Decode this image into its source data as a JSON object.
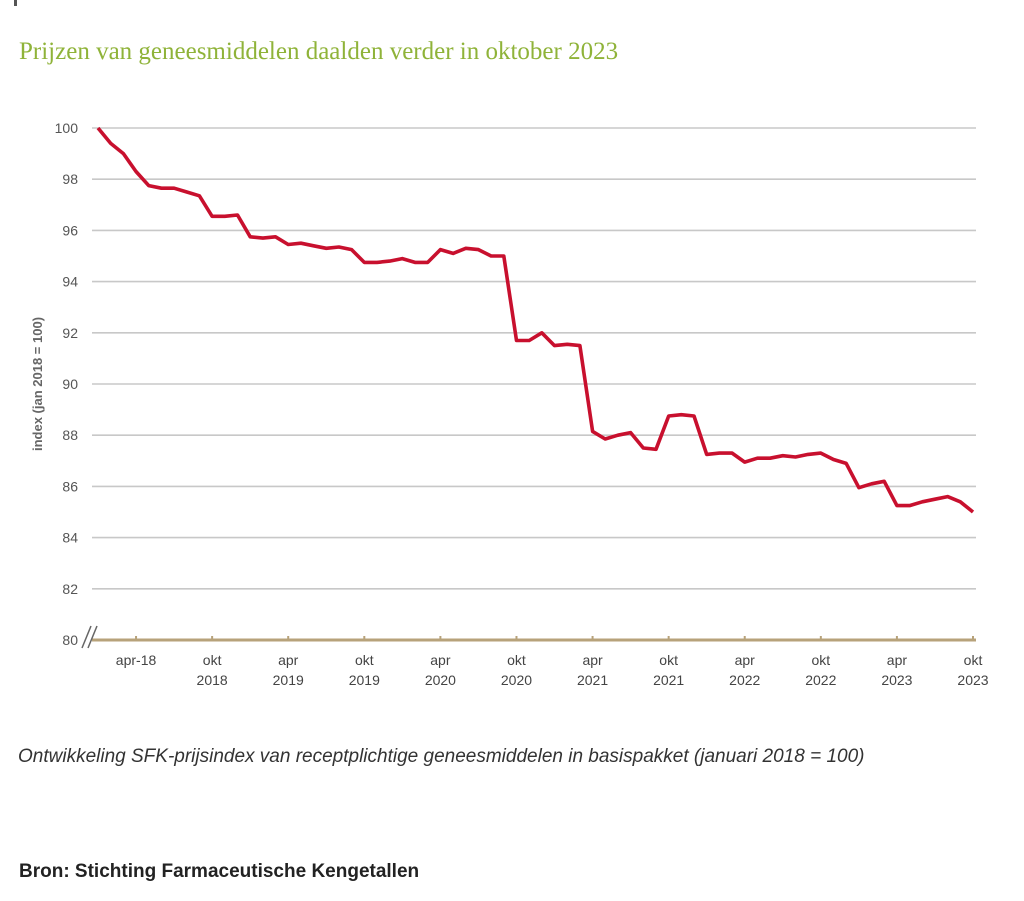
{
  "title": "Prijzen van geneesmiddelen daalden verder in oktober 2023",
  "caption": "Ontwikkeling SFK-prijsindex van receptplichtige geneesmiddelen in basispakket (januari 2018 = 100)",
  "source": "Bron: Stichting Farmaceutische Kengetallen",
  "colors": {
    "title": "#8fb339",
    "line": "#c8102e",
    "grid": "#c8c8c8",
    "axis": "#b7a27a",
    "tick_text": "#555555"
  },
  "chart_data": {
    "type": "line",
    "title": "",
    "xlabel": "",
    "ylabel": "index (jan 2018 = 100)",
    "ylim": [
      80,
      100
    ],
    "yticks": [
      100,
      98,
      96,
      94,
      92,
      90,
      88,
      86,
      84,
      82,
      80
    ],
    "grid": true,
    "axis_break": true,
    "x_ticks": [
      {
        "month": "2018-04",
        "line1": "apr-18",
        "line2": ""
      },
      {
        "month": "2018-10",
        "line1": "okt",
        "line2": "2018"
      },
      {
        "month": "2019-04",
        "line1": "apr",
        "line2": "2019"
      },
      {
        "month": "2019-10",
        "line1": "okt",
        "line2": "2019"
      },
      {
        "month": "2020-04",
        "line1": "apr",
        "line2": "2020"
      },
      {
        "month": "2020-10",
        "line1": "okt",
        "line2": "2020"
      },
      {
        "month": "2021-04",
        "line1": "apr",
        "line2": "2021"
      },
      {
        "month": "2021-10",
        "line1": "okt",
        "line2": "2021"
      },
      {
        "month": "2022-04",
        "line1": "apr",
        "line2": "2022"
      },
      {
        "month": "2022-10",
        "line1": "okt",
        "line2": "2022"
      },
      {
        "month": "2023-04",
        "line1": "apr",
        "line2": "2023"
      },
      {
        "month": "2023-10",
        "line1": "okt",
        "line2": "2023"
      }
    ],
    "x": [
      "2018-01",
      "2018-02",
      "2018-03",
      "2018-04",
      "2018-05",
      "2018-06",
      "2018-07",
      "2018-08",
      "2018-09",
      "2018-10",
      "2018-11",
      "2018-12",
      "2019-01",
      "2019-02",
      "2019-03",
      "2019-04",
      "2019-05",
      "2019-06",
      "2019-07",
      "2019-08",
      "2019-09",
      "2019-10",
      "2019-11",
      "2019-12",
      "2020-01",
      "2020-02",
      "2020-03",
      "2020-04",
      "2020-05",
      "2020-06",
      "2020-07",
      "2020-08",
      "2020-09",
      "2020-10",
      "2020-11",
      "2020-12",
      "2021-01",
      "2021-02",
      "2021-03",
      "2021-04",
      "2021-05",
      "2021-06",
      "2021-07",
      "2021-08",
      "2021-09",
      "2021-10",
      "2021-11",
      "2021-12",
      "2022-01",
      "2022-02",
      "2022-03",
      "2022-04",
      "2022-05",
      "2022-06",
      "2022-07",
      "2022-08",
      "2022-09",
      "2022-10",
      "2022-11",
      "2022-12",
      "2023-01",
      "2023-02",
      "2023-03",
      "2023-04",
      "2023-05",
      "2023-06",
      "2023-07",
      "2023-08",
      "2023-09",
      "2023-10"
    ],
    "series": [
      {
        "values": [
          100.0,
          99.4,
          99.0,
          98.3,
          97.75,
          97.65,
          97.65,
          97.5,
          97.35,
          96.55,
          96.55,
          96.6,
          95.75,
          95.7,
          95.75,
          95.45,
          95.5,
          95.4,
          95.3,
          95.35,
          95.25,
          94.75,
          94.75,
          94.8,
          94.9,
          94.75,
          94.75,
          95.25,
          95.1,
          95.3,
          95.25,
          95.0,
          95.0,
          91.7,
          91.7,
          92.0,
          91.5,
          91.55,
          91.5,
          88.15,
          87.85,
          88.0,
          88.1,
          87.5,
          87.45,
          88.75,
          88.8,
          88.75,
          87.25,
          87.3,
          87.3,
          86.95,
          87.1,
          87.1,
          87.2,
          87.15,
          87.25,
          87.3,
          87.05,
          86.9,
          85.95,
          86.1,
          86.2,
          85.25,
          85.25,
          85.4,
          85.5,
          85.6,
          85.4,
          85.0
        ]
      }
    ]
  }
}
